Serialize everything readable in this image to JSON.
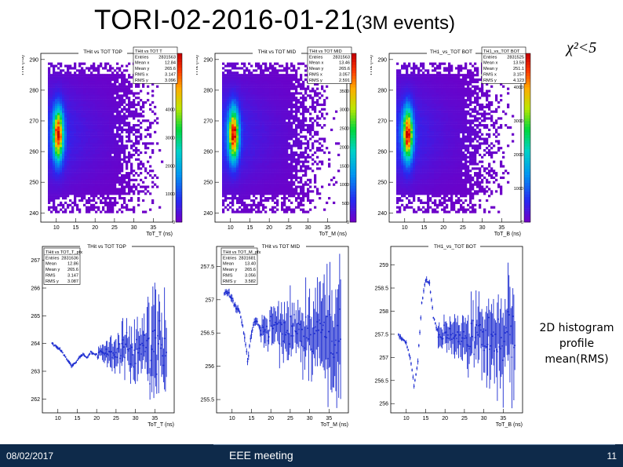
{
  "slide": {
    "title": "TORI-02-2016-01-21",
    "title_suffix": "(3M events)",
    "condition": "χ²<5",
    "annotation": [
      "2D histogram",
      "profile",
      "mean(RMS)"
    ],
    "footer_date": "08/02/2017",
    "footer_center": "EEE meeting",
    "page_number": "11"
  },
  "colors": {
    "footer_bg": "#0e2a4a",
    "profile_line": "#1a2ad0",
    "palette_low": "#6a00c8",
    "palette_high": "#d00000"
  },
  "chart_data": [
    {
      "type": "heatmap",
      "title": "THit vs TOT TOP",
      "ylabel": "THit (ns)",
      "xlabel": "ToT_T (ns)",
      "xlim": [
        6,
        40
      ],
      "ylim": [
        237,
        292
      ],
      "xticks": [
        10,
        15,
        20,
        25,
        30,
        35
      ],
      "yticks": [
        240,
        250,
        260,
        270,
        280,
        290
      ],
      "zticks": [
        0,
        1000,
        2000,
        3000,
        4000,
        5000,
        6000
      ],
      "zlim": [
        0,
        6000
      ],
      "stats": [
        [
          "THit vs TOT T",
          ""
        ],
        [
          "Entries",
          "2831563"
        ],
        [
          "Mean x",
          "12.84"
        ],
        [
          "Mean y",
          "265.6"
        ],
        [
          "RMS x",
          "3.147"
        ],
        [
          "RMS y",
          "3.096"
        ]
      ],
      "peak": {
        "x": 10.5,
        "y": 265.6
      }
    },
    {
      "type": "heatmap",
      "title": "THit vs TOT MID",
      "ylabel": "THit (ns)",
      "xlabel": "ToT_M (ns)",
      "xlim": [
        6,
        40
      ],
      "ylim": [
        237,
        292
      ],
      "xticks": [
        10,
        15,
        20,
        25,
        30,
        35
      ],
      "yticks": [
        240,
        250,
        260,
        270,
        280,
        290
      ],
      "zticks": [
        0,
        500,
        1000,
        1500,
        2000,
        2500,
        3000,
        3500,
        4000,
        4500
      ],
      "zlim": [
        0,
        4500
      ],
      "stats": [
        [
          "THit vs TOT MID",
          ""
        ],
        [
          "Entries",
          "2831563"
        ],
        [
          "Mean x",
          "13.46"
        ],
        [
          "Mean y",
          "265.6"
        ],
        [
          "RMS x",
          "3.057"
        ],
        [
          "RMS y",
          "2.591"
        ]
      ],
      "peak": {
        "x": 10.8,
        "y": 265.6
      }
    },
    {
      "type": "heatmap",
      "title": "TH1_vs_TOT BOT",
      "ylabel": "THit (ns)",
      "xlabel": "ToT_B (ns)",
      "xlim": [
        6,
        40
      ],
      "ylim": [
        237,
        292
      ],
      "xticks": [
        10,
        15,
        20,
        25,
        30,
        35
      ],
      "yticks": [
        240,
        250,
        260,
        270,
        280,
        290
      ],
      "zticks": [
        0,
        1000,
        2000,
        3000,
        4000,
        5000
      ],
      "zlim": [
        0,
        5000
      ],
      "stats": [
        [
          "TH1_vs_TOT BOT",
          ""
        ],
        [
          "Entries",
          "2831525"
        ],
        [
          "Mean x",
          "13.59"
        ],
        [
          "Mean y",
          "251.1"
        ],
        [
          "RMS x",
          "3.157"
        ],
        [
          "RMS y",
          "4.123"
        ]
      ],
      "peak": {
        "x": 10.8,
        "y": 265.6
      }
    },
    {
      "type": "line",
      "title": "THit vs TOT TOP",
      "xlabel": "ToT_T (ns)",
      "xlim": [
        6,
        40
      ],
      "ylim": [
        261.5,
        267.5
      ],
      "xticks": [
        10,
        15,
        20,
        25,
        30,
        35
      ],
      "yticks": [
        262,
        263,
        264,
        265,
        266,
        267
      ],
      "stats": [
        [
          "THit vs TOT_T_pfx",
          ""
        ],
        [
          "Entries",
          "2831636"
        ],
        [
          "Mean",
          "12.86"
        ],
        [
          "Mean y",
          "265.6"
        ],
        [
          "RMS",
          "3.147"
        ],
        [
          "RMS y",
          "3.087"
        ]
      ],
      "x": [
        8.5,
        9.5,
        10.5,
        11.5,
        12.5,
        13.5,
        14.5,
        15.5,
        16.5,
        17.5,
        18.5,
        19.5,
        20.5,
        22,
        24,
        26,
        28,
        30,
        32,
        34,
        36,
        38
      ],
      "y": [
        264.0,
        263.9,
        263.8,
        263.6,
        263.4,
        263.2,
        263.3,
        263.5,
        263.6,
        263.5,
        263.7,
        263.6,
        263.6,
        263.7,
        263.6,
        263.8,
        263.7,
        263.6,
        263.9,
        263.7,
        264.1,
        263.6
      ],
      "noise_start": 20,
      "noise_amp_start": 0.15,
      "noise_amp_end": 1.6
    },
    {
      "type": "line",
      "title": "THit vs TOT MID",
      "xlabel": "ToT_M (ns)",
      "xlim": [
        6,
        40
      ],
      "ylim": [
        255.3,
        257.8
      ],
      "xticks": [
        10,
        15,
        20,
        25,
        30,
        35
      ],
      "yticks": [
        255.5,
        256,
        256.5,
        257,
        257.5
      ],
      "stats": [
        [
          "THit vs TOT_M_pfx",
          ""
        ],
        [
          "Entries",
          "2831681"
        ],
        [
          "Mean",
          "13.40"
        ],
        [
          "Mean y",
          "265.6"
        ],
        [
          "RMS",
          "3.056"
        ],
        [
          "RMS y",
          "3.582"
        ]
      ],
      "x": [
        8,
        9,
        10,
        11,
        12,
        13,
        14,
        15,
        16,
        17,
        18,
        19,
        20,
        22,
        24,
        26,
        28,
        30,
        32,
        34,
        36,
        38
      ],
      "y": [
        257.1,
        257.1,
        257.0,
        256.9,
        256.8,
        256.5,
        256.1,
        256.5,
        256.7,
        256.6,
        256.6,
        256.5,
        256.6,
        256.6,
        256.5,
        256.6,
        256.5,
        256.6,
        256.5,
        256.6,
        256.5,
        256.6
      ],
      "noise_start": 17,
      "noise_amp_start": 0.15,
      "noise_amp_end": 0.7
    },
    {
      "type": "line",
      "title": "TH1_vs_TOT BOT",
      "xlabel": "ToT_B (ns)",
      "xlim": [
        6,
        40
      ],
      "ylim": [
        255.8,
        259.4
      ],
      "xticks": [
        10,
        15,
        20,
        25,
        30,
        35
      ],
      "yticks": [
        256,
        256.5,
        257,
        257.5,
        258,
        258.5,
        259
      ],
      "stats": [],
      "x": [
        8,
        9,
        10,
        11,
        12,
        13,
        14,
        15,
        16,
        17,
        18,
        19,
        20,
        22,
        24,
        26,
        28,
        30,
        32,
        34,
        36,
        38
      ],
      "y": [
        257.5,
        257.4,
        257.3,
        257.0,
        256.4,
        256.9,
        258.2,
        258.7,
        258.6,
        257.9,
        257.6,
        257.4,
        257.5,
        257.4,
        257.5,
        257.4,
        257.5,
        257.4,
        257.5,
        257.4,
        257.5,
        257.4
      ],
      "noise_start": 18,
      "noise_amp_start": 0.2,
      "noise_amp_end": 1.0
    }
  ]
}
